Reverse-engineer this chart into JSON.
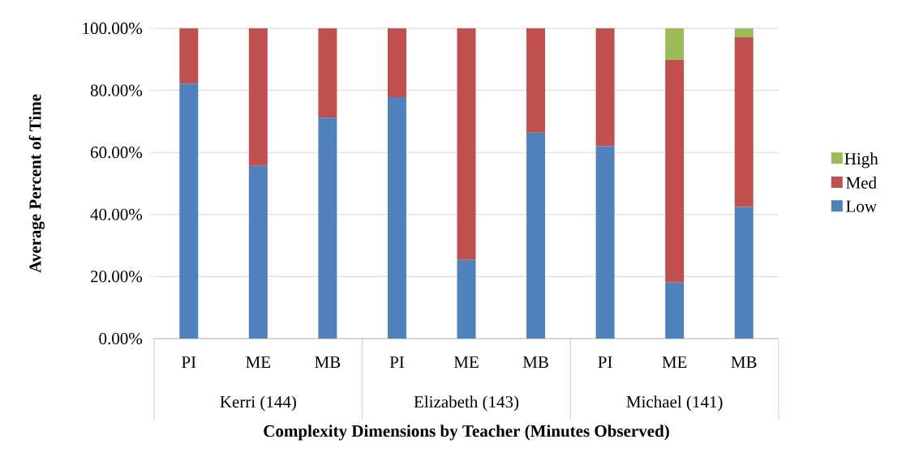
{
  "chart_data": {
    "type": "bar",
    "stacked": true,
    "xlabel": "**Complexity Dimensions by Teacher (Minutes Observed)**",
    "ylabel": "**Average Percent of Time**",
    "categories": [
      "PI",
      "ME",
      "MB",
      "PI",
      "ME",
      "MB",
      "PI",
      "ME",
      "MB"
    ],
    "annotations": [
      "Kerri (144)",
      "Elizabeth (143)",
      "Michael (141)"
    ],
    "series": [
      {
        "name": "Low",
        "color": "#4f81bd",
        "values": [
          82.2,
          55.7,
          71.2,
          77.8,
          25.4,
          66.4,
          62.0,
          18.1,
          42.4
        ]
      },
      {
        "name": "Med",
        "color": "#c0504d",
        "values": [
          17.8,
          44.3,
          28.8,
          22.2,
          74.6,
          33.6,
          38.0,
          71.8,
          54.8
        ]
      },
      {
        "name": "High",
        "color": "#9bbb59",
        "values": [
          0,
          0,
          0,
          0,
          0,
          0,
          0,
          10.1,
          2.8
        ]
      }
    ],
    "ylim": [
      0,
      100
    ],
    "yticks": [
      {
        "value": 0,
        "label": "0.00%"
      },
      {
        "value": 20,
        "label": "20.00%"
      },
      {
        "value": 40,
        "label": "40.00%"
      },
      {
        "value": 60,
        "label": "60.00%"
      },
      {
        "value": 80,
        "label": "80.00%"
      },
      {
        "value": 100,
        "label": "100.00%"
      }
    ],
    "grid": "y",
    "legend": "right"
  }
}
